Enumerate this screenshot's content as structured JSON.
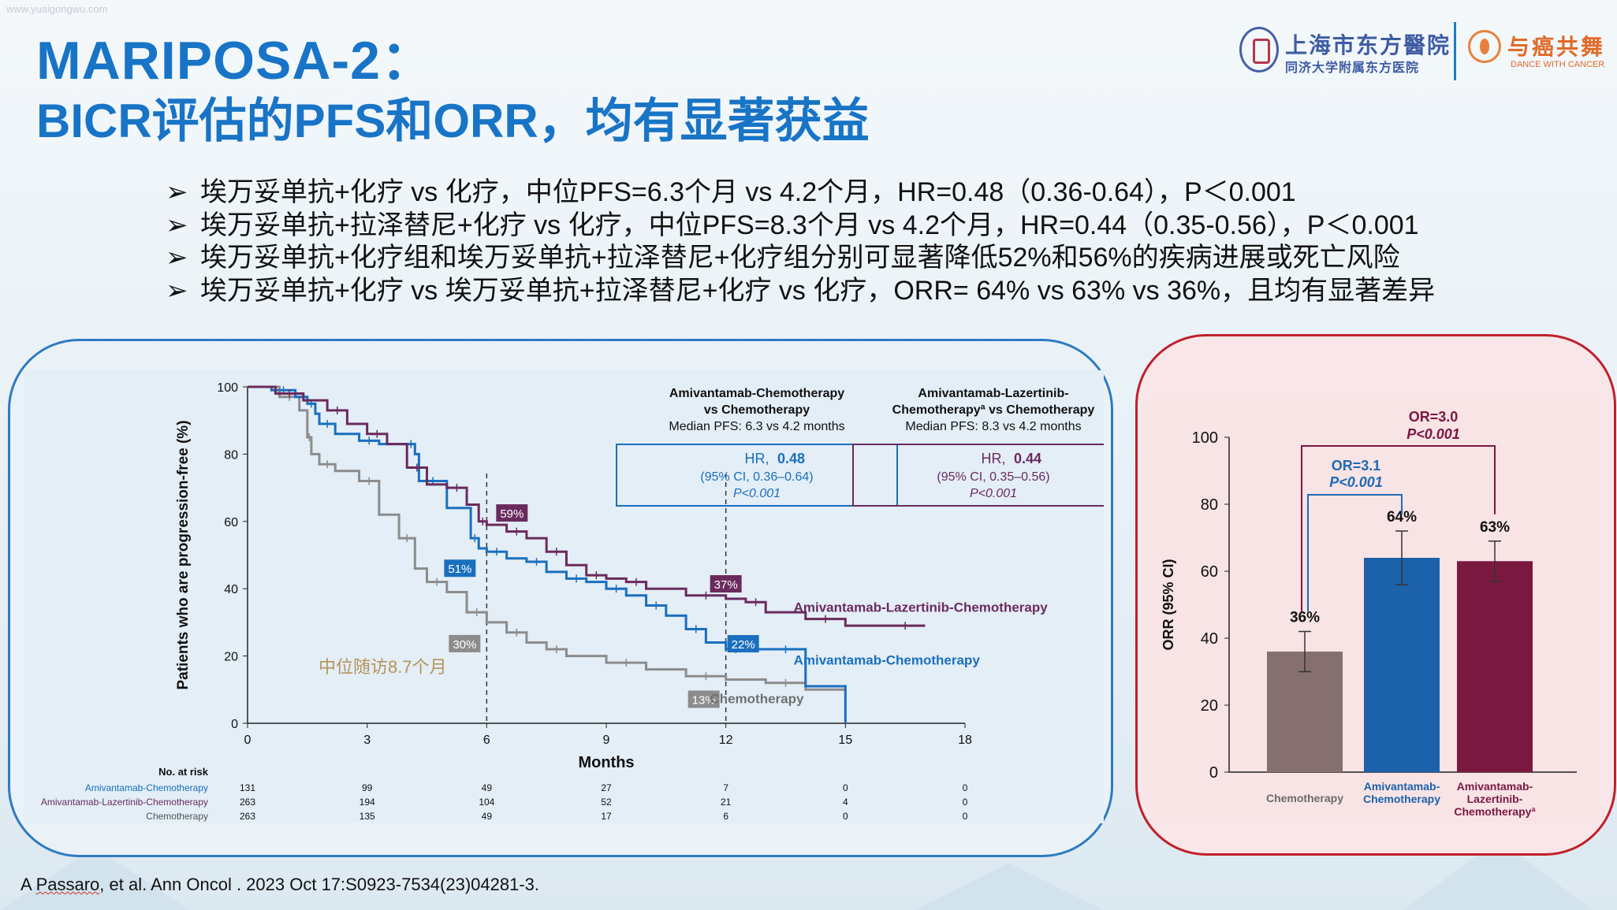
{
  "watermark": "www.yuaigongwu.com",
  "title": {
    "line1": "MARIPOSA-2：",
    "line2": "BICR评估的PFS和ORR，均有显著获益"
  },
  "logos": {
    "hospital_name": "上海市东方醫院",
    "hospital_sub": "同济大学附属东方医院",
    "dance_name": "与癌共舞",
    "dance_sub": "DANCE WITH CANCER"
  },
  "bullets": {
    "arrow": "➢",
    "items": [
      "埃万妥单抗+化疗 vs 化疗，中位PFS=6.3个月 vs 4.2个月，HR=0.48（0.36-0.64），P＜0.001",
      "埃万妥单抗+拉泽替尼+化疗 vs 化疗，中位PFS=8.3个月 vs 4.2个月，HR=0.44（0.35-0.56），P＜0.001",
      "埃万妥单抗+化疗组和埃万妥单抗+拉泽替尼+化疗组分别可显著降低52%和56%的疾病进展或死亡风险",
      "埃万妥单抗+化疗 vs 埃万妥单抗+拉泽替尼+化疗 vs 化疗，ORR= 64% vs 63% vs 36%，且均有显著差异"
    ]
  },
  "citation": {
    "author_first": "Passaro",
    "text_prefix": "A ",
    "text_rest": ", et al. Ann Oncol . 2023 Oct 17:S0923-7534(23)04281-3."
  },
  "chart_data": [
    {
      "type": "line",
      "xlabel": "Months",
      "ylabel": "Patients who are progression-free (%)",
      "xlim": [
        0,
        18
      ],
      "ylim": [
        0,
        100
      ],
      "x_ticks": [
        0,
        3,
        6,
        9,
        12,
        15,
        18
      ],
      "y_ticks": [
        0,
        20,
        40,
        60,
        80,
        100
      ],
      "series": [
        {
          "name": "Amivantamab-Chemotherapy",
          "color": "#1a6fbf",
          "x": [
            0,
            0.6,
            1.2,
            1.5,
            1.7,
            1.8,
            2.2,
            2.8,
            3.3,
            4.0,
            4.2,
            4.3,
            5.0,
            5.6,
            5.8,
            6.0,
            6.5,
            7.0,
            7.5,
            8.0,
            8.5,
            9.0,
            9.5,
            10.0,
            10.5,
            11.0,
            11.5,
            12.0,
            12.5,
            13.0,
            14.0,
            15.0
          ],
          "y": [
            100,
            99,
            97,
            95,
            92,
            89,
            86,
            84,
            83,
            83,
            80,
            72,
            64,
            55,
            52,
            51,
            49,
            48,
            45,
            43,
            42,
            40,
            38,
            35,
            32,
            28,
            24,
            22,
            22,
            22,
            11,
            0
          ]
        },
        {
          "name": "Amivantamab-Lazertinib-Chemotherapy",
          "color": "#6b2a5e",
          "x": [
            0,
            0.7,
            1.4,
            2.0,
            2.5,
            3.0,
            3.5,
            4.0,
            4.5,
            5.0,
            5.5,
            5.8,
            6.0,
            6.5,
            7.0,
            7.5,
            8.0,
            8.5,
            9.0,
            9.5,
            10.0,
            11.0,
            12.0,
            12.5,
            13.0,
            14.0,
            15.0,
            16.0,
            17.0
          ],
          "y": [
            100,
            98,
            96,
            93,
            89,
            86,
            83,
            76,
            71,
            70,
            65,
            60,
            59,
            57,
            55,
            51,
            47,
            44,
            43,
            42,
            40,
            38,
            37,
            36,
            33,
            31,
            29,
            29,
            29
          ]
        },
        {
          "name": "Chemotherapy",
          "color": "#8c8c8c",
          "x": [
            0,
            0.8,
            1.3,
            1.5,
            1.6,
            1.8,
            2.2,
            2.8,
            3.3,
            3.8,
            4.2,
            4.5,
            5.0,
            5.5,
            6.0,
            6.5,
            7.0,
            7.5,
            8.0,
            9.0,
            10.0,
            11.0,
            12.0,
            13.0,
            14.0,
            15.0
          ],
          "y": [
            100,
            97,
            93,
            85,
            80,
            77,
            75,
            72,
            62,
            55,
            46,
            42,
            39,
            33,
            30,
            27,
            24,
            22,
            20,
            18,
            16,
            14,
            13,
            12,
            10,
            10
          ]
        }
      ],
      "line_labels": [
        "Amivantamab-Lazertinib-Chemotherapy",
        "Amivantamab-Chemotherapy",
        "Chemotherapy"
      ],
      "landmarks": [
        {
          "label": "59%",
          "x": 6,
          "y": 59,
          "color": "#6b2a5e"
        },
        {
          "label": "51%",
          "x": 6,
          "y": 51,
          "color": "#1a6fbf"
        },
        {
          "label": "30%",
          "x": 6,
          "y": 30,
          "color": "#8c8c8c"
        },
        {
          "label": "37%",
          "x": 12,
          "y": 37,
          "color": "#6b2a5e"
        },
        {
          "label": "22%",
          "x": 12,
          "y": 22,
          "color": "#1a6fbf"
        },
        {
          "label": "13%",
          "x": 12,
          "y": 13,
          "color": "#8c8c8c"
        }
      ],
      "annotations": {
        "header1": {
          "line1": "Amivantamab-Chemotherapy",
          "line2": "vs Chemotherapy",
          "line3": "Median PFS: 6.3 vs 4.2 months"
        },
        "hr1": {
          "prefix": "HR, ",
          "value": "0.48",
          "ci": "(95% CI, 0.36–0.64)",
          "p": "P<0.001"
        },
        "header2": {
          "line1": "Amivantamab-Lazertinib-",
          "line2": "Chemotherapyª vs Chemotherapy",
          "line3": "Median PFS: 8.3 vs 4.2 months"
        },
        "hr2": {
          "prefix": "HR, ",
          "value": "0.44",
          "ci": "(95% CI, 0.35–0.56)",
          "p": "P<0.001"
        },
        "followup": "中位随访8.7个月"
      },
      "risk_table": {
        "title": "No. at risk",
        "rows": [
          {
            "label": "Amivantamab-Chemotherapy",
            "color": "#1a6fbf",
            "values": [
              "131",
              "99",
              "49",
              "27",
              "7",
              "0",
              "0"
            ]
          },
          {
            "label": "Amivantamab-Lazertinib-Chemotherapy",
            "color": "#6b2a5e",
            "values": [
              "263",
              "194",
              "104",
              "52",
              "21",
              "4",
              "0"
            ]
          },
          {
            "label": "Chemotherapy",
            "color": "#555555",
            "values": [
              "263",
              "135",
              "49",
              "17",
              "6",
              "0",
              "0"
            ]
          }
        ]
      }
    },
    {
      "type": "bar",
      "ylabel": "ORR (95% CI)",
      "ylim": [
        0,
        100
      ],
      "y_ticks": [
        0,
        20,
        40,
        60,
        80,
        100
      ],
      "categories": [
        "Chemotherapy",
        "Amivantamab-Chemotherapy",
        "Amivantamab-Lazertinib-Chemotherapyª"
      ],
      "category_lines": [
        [
          "Chemotherapy"
        ],
        [
          "Amivantamab-",
          "Chemotherapy"
        ],
        [
          "Amivantamab-",
          "Lazertinib-",
          "Chemotherapyª"
        ]
      ],
      "values": [
        36,
        64,
        63
      ],
      "ci_low": [
        30,
        56,
        57
      ],
      "ci_high": [
        42,
        72,
        69
      ],
      "value_labels": [
        "36%",
        "64%",
        "63%"
      ],
      "colors": [
        "#85706f",
        "#1b62aa",
        "#7a1840"
      ],
      "comparisons": [
        {
          "or": "OR=3.1",
          "p": "P<0.001",
          "color": "#1f6bb5"
        },
        {
          "or": "OR=3.0",
          "p": "P<0.001",
          "color": "#7a1840"
        }
      ]
    }
  ]
}
